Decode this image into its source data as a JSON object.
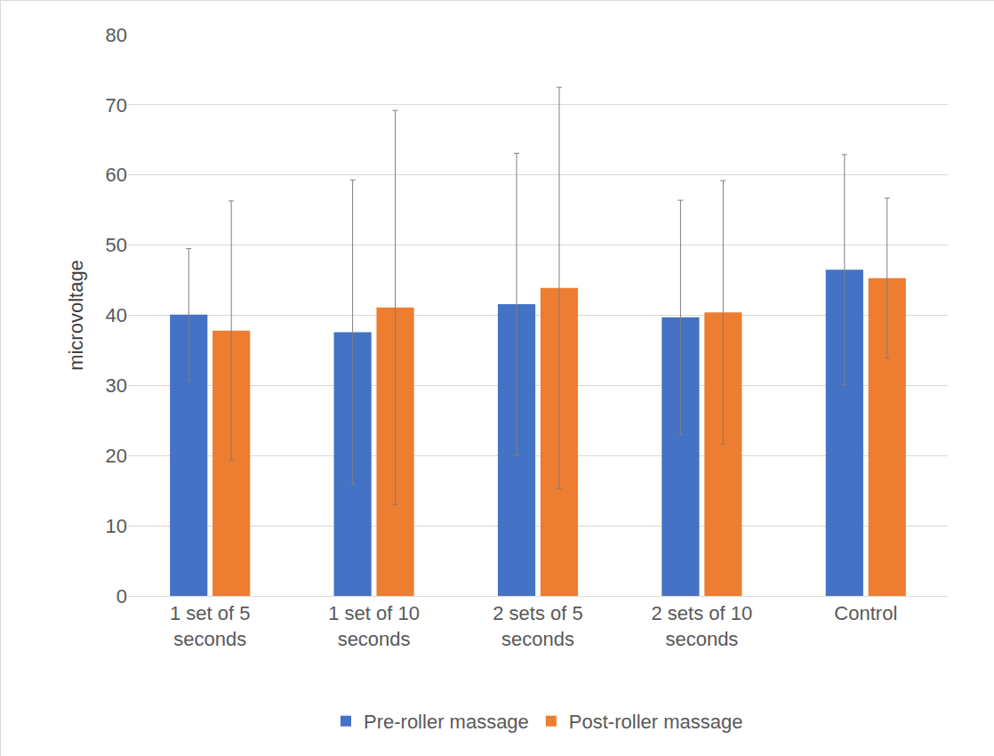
{
  "chart_data": {
    "type": "bar",
    "y_label": "microvoltage",
    "categories": [
      "1 set of 5 seconds",
      "1 set of 10 seconds",
      "2 sets of 5 seconds",
      "2 sets of 10 seconds",
      "Control"
    ],
    "series": [
      {
        "name": "Pre-roller massage",
        "color": "#4472c4",
        "values": [
          40.1,
          37.6,
          41.6,
          39.7,
          46.5
        ],
        "error": [
          9.4,
          21.7,
          21.5,
          16.7,
          16.4
        ]
      },
      {
        "name": "Post-roller massage",
        "color": "#ed7d31",
        "values": [
          37.8,
          41.1,
          43.9,
          40.4,
          45.3
        ],
        "error": [
          18.5,
          28.1,
          28.6,
          18.8,
          11.4
        ]
      }
    ],
    "ylim": [
      0,
      80
    ],
    "yticks": [
      0,
      10,
      20,
      30,
      40,
      50,
      60,
      70,
      80
    ],
    "grid": true,
    "legend": "bottom"
  }
}
